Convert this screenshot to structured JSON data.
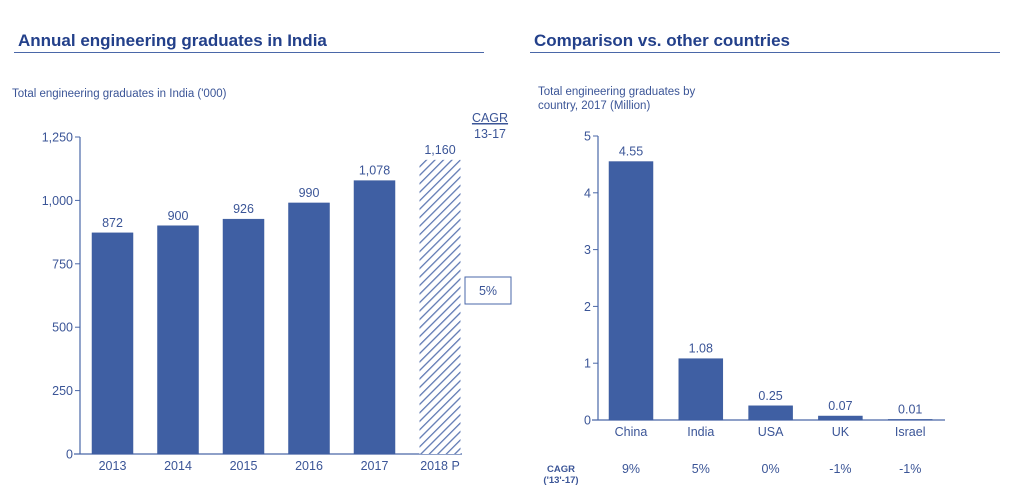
{
  "left_panel": {
    "title": "Annual engineering graduates in India",
    "subtitle": "Total engineering graduates in India ('000)",
    "cagr_header": "CAGR",
    "cagr_period": "13-17",
    "cagr_value": "5%"
  },
  "right_panel": {
    "title": "Comparison vs. other countries",
    "subtitle_line1": "Total engineering graduates by",
    "subtitle_line2": "country, 2017 (Million)",
    "cagr_label_line1": "CAGR",
    "cagr_label_line2": "('13'-17)"
  },
  "colors": {
    "bar": "#3f5fa3",
    "text": "#3b5597",
    "title": "#23408a",
    "axis": "#4a67a8"
  },
  "chart_data": [
    {
      "type": "bar",
      "title": "Total engineering graduates in India ('000)",
      "xlabel": "",
      "ylabel": "",
      "categories": [
        "2013",
        "2014",
        "2015",
        "2016",
        "2017",
        "2018 P"
      ],
      "values": [
        872,
        900,
        926,
        990,
        1078,
        1160
      ],
      "data_labels": [
        "872",
        "900",
        "926",
        "990",
        "1,078",
        "1,160"
      ],
      "projected": [
        false,
        false,
        false,
        false,
        false,
        true
      ],
      "ylim": [
        0,
        1250
      ],
      "yticks": [
        0,
        250,
        500,
        750,
        1000,
        1250
      ],
      "ytick_labels": [
        "0",
        "250",
        "500",
        "750",
        "1,000",
        "1,250"
      ],
      "grid": false,
      "annotation": {
        "label": "CAGR 13-17",
        "value": "5%"
      }
    },
    {
      "type": "bar",
      "title": "Total engineering graduates by country, 2017 (Million)",
      "xlabel": "",
      "ylabel": "",
      "categories": [
        "China",
        "India",
        "USA",
        "UK",
        "Israel"
      ],
      "values": [
        4.55,
        1.08,
        0.25,
        0.07,
        0.01
      ],
      "data_labels": [
        "4.55",
        "1.08",
        "0.25",
        "0.07",
        "0.01"
      ],
      "cagr": [
        "9%",
        "5%",
        "0%",
        "-1%",
        "-1%"
      ],
      "ylim": [
        0,
        5
      ],
      "yticks": [
        0,
        1,
        2,
        3,
        4,
        5
      ],
      "ytick_labels": [
        "0",
        "1",
        "2",
        "3",
        "4",
        "5"
      ],
      "grid": false
    }
  ]
}
